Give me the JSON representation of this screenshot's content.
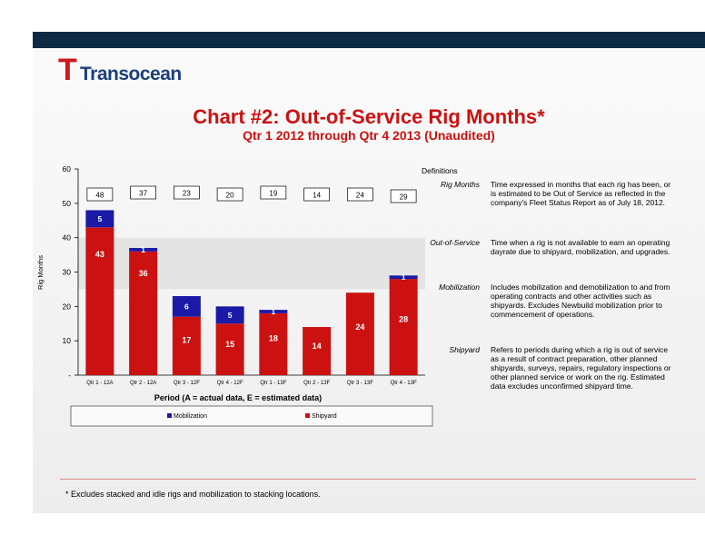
{
  "logo_text": "Transocean",
  "title": "Chart #2: Out-of-Service Rig Months*",
  "subtitle": "Qtr 1 2012 through Qtr 4 2013 (Unaudited)",
  "footnote": "* Excludes stacked and idle rigs and mobilization to stacking locations.",
  "colors": {
    "mobilization": "#1a1aa6",
    "shipyard": "#cc1111",
    "header_bar": "#0d2a45"
  },
  "chart_data": {
    "type": "bar",
    "stacked": true,
    "categories": [
      "Qtr 1 - 12A",
      "Qtr 2 - 12A",
      "Qtr 3 - 12F",
      "Qtr 4 - 12F",
      "Qtr 1 - 13F",
      "Qtr 2 - 13F",
      "Qtr 3 - 13F",
      "Qtr 4 - 13F"
    ],
    "series": [
      {
        "name": "Shipyard",
        "values": [
          43,
          36,
          17,
          15,
          18,
          14,
          24,
          28
        ]
      },
      {
        "name": "Mobilization",
        "values": [
          5,
          1,
          6,
          5,
          1,
          0,
          0,
          1
        ]
      }
    ],
    "segment_labels": {
      "Shipyard": [
        "43",
        "36",
        "17",
        "15",
        "18",
        "14",
        "24",
        "28"
      ],
      "Mobilization": [
        "5",
        "1",
        "6",
        "5",
        "1",
        "",
        "",
        "1"
      ]
    },
    "totals": [
      "48",
      "37",
      "23",
      "20",
      "19",
      "14",
      "24",
      "29"
    ],
    "ylim": [
      0,
      60
    ],
    "yticks": [
      0,
      10,
      20,
      30,
      40,
      50,
      60
    ],
    "ytick_labels": [
      "-",
      "10",
      "20",
      "30",
      "40",
      "50",
      "60"
    ],
    "ylabel": "Rig Months",
    "xlabel": "Period (A = actual data, E = estimated data)",
    "legend": [
      "Mobilization",
      "Shipyard"
    ],
    "legend_position": "bottom",
    "grid": false
  },
  "definitions": {
    "heading": "Definitions",
    "items": [
      {
        "term": "Rig Months",
        "text": "Time expressed in months that each rig has been, or is estimated to be Out of Service as reflected in the company's Fleet Status Report as of July 18, 2012."
      },
      {
        "term": "Out-of-Service",
        "text": "Time when a rig is not available to earn an operating dayrate due to shipyard, mobilization, and upgrades."
      },
      {
        "term": "Mobilization",
        "text": "Includes mobilization and demobilization to and from operating contracts and other activities such as shipyards. Excludes Newbuild mobilization prior to commencement of operations."
      },
      {
        "term": "Shipyard",
        "text": "Refers to periods during which a rig is out of service as a result of contract preparation, other planned shipyards, surveys, repairs, regulatory inspections or other planned service or work on the rig. Estimated data excludes unconfirmed shipyard time."
      }
    ]
  }
}
